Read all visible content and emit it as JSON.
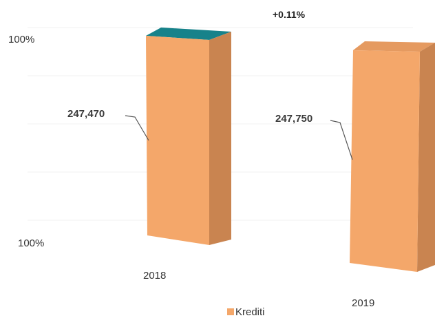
{
  "chart_data": {
    "type": "bar",
    "categories": [
      "2018",
      "2019"
    ],
    "series": [
      {
        "name": "Krediti",
        "values": [
          247470,
          247750
        ],
        "color": "#F4A76A"
      }
    ],
    "data_labels": [
      "247,470",
      "247,750"
    ],
    "axis_labels": [
      "100%",
      "100%"
    ],
    "change_annotation": "+0.11%",
    "legend": {
      "label": "Krediti",
      "position": "bottom"
    },
    "grid": true,
    "colors": {
      "front": "#F4A76A",
      "side": "#C98450",
      "top": "#E59A60",
      "accent_top": "#17828A"
    }
  }
}
